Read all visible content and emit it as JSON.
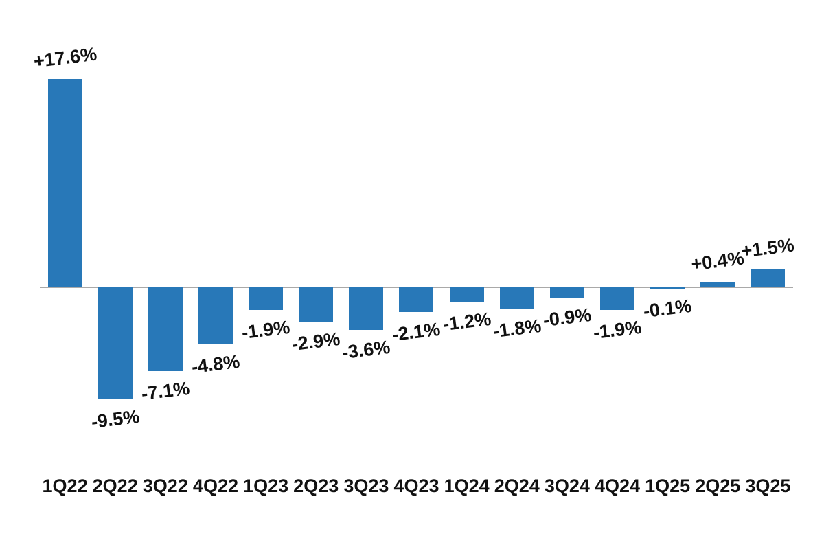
{
  "chart_data": {
    "type": "bar",
    "categories": [
      "1Q22",
      "2Q22",
      "3Q22",
      "4Q22",
      "1Q23",
      "2Q23",
      "3Q23",
      "4Q23",
      "1Q24",
      "2Q24",
      "3Q24",
      "4Q24",
      "1Q25",
      "2Q25",
      "3Q25"
    ],
    "values": [
      17.6,
      -9.5,
      -7.1,
      -4.8,
      -1.9,
      -2.9,
      -3.6,
      -2.1,
      -1.2,
      -1.8,
      -0.9,
      -1.9,
      -0.1,
      0.4,
      1.5
    ],
    "labels": [
      "+17.6%",
      "-9.5%",
      "-7.1%",
      "-4.8%",
      "-1.9%",
      "-2.9%",
      "-3.6%",
      "-2.1%",
      "-1.2%",
      "-1.8%",
      "-0.9%",
      "-1.9%",
      "-0.1%",
      "+0.4%",
      "+1.5%"
    ],
    "title": "",
    "xlabel": "",
    "ylabel": "",
    "ylim": [
      -11,
      19
    ],
    "grid": false,
    "legend": null,
    "bar_color": "#2878b8",
    "axis_line_color": "#a9a9a9",
    "label_color": "#111111"
  }
}
